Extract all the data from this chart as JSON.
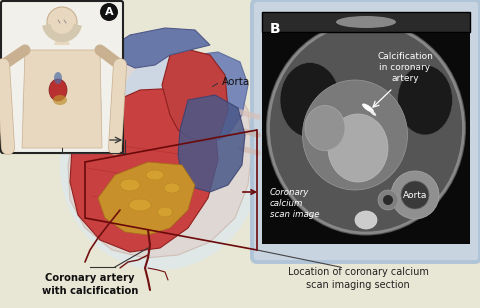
{
  "background_color": "#e8e6d4",
  "figure_width": 4.8,
  "figure_height": 3.08,
  "dpi": 100,
  "panel_A_label": "A",
  "panel_B_label": "B",
  "aorta_label": "Aorta",
  "calcification_label": "Calcification\nin coronary\nartery",
  "coronary_calcium_label": "Coronary\ncalcium\nscan image",
  "aorta_B_label": "Aorta",
  "bottom_left_label_bold": "Coronary artery\nwith calcification",
  "bottom_right_label": "Location of coronary calcium\nscan imaging section",
  "panel_B_bg": "#111111",
  "panel_B_border": "#b0c4d8",
  "scan_line_color": "#6b0a0a",
  "arrow_color": "#333333",
  "body_box_bg": "#f0f0f0",
  "body_box_border": "#333333"
}
